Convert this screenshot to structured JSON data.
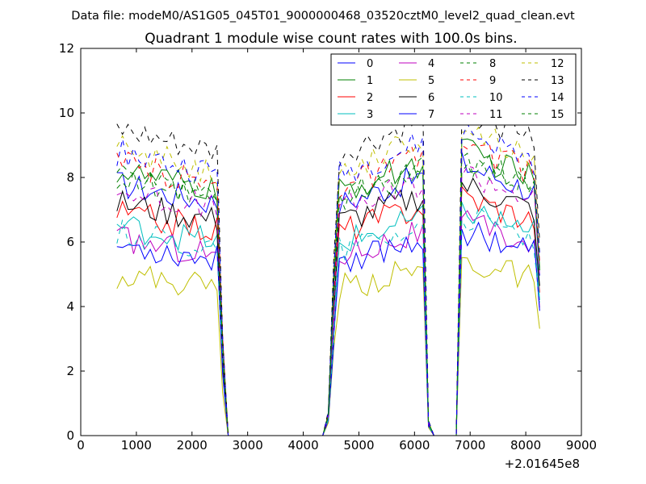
{
  "figure": {
    "suptitle": "Data file: modeM0/AS1G05_045T01_9000000468_03520cztM0_level2_quad_clean.evt",
    "title": "Quadrant 1 module wise count rates with 100.0s bins.",
    "x_offset_label": "+2.01645e8"
  },
  "chart_data": {
    "type": "line",
    "title": "Quadrant 1 module wise count rates with 100.0s bins.",
    "xlabel": "",
    "ylabel": "",
    "xlim": [
      0,
      9000
    ],
    "ylim": [
      0,
      12
    ],
    "x_ticks": [
      0,
      1000,
      2000,
      3000,
      4000,
      5000,
      6000,
      7000,
      8000,
      9000
    ],
    "y_ticks": [
      0,
      2,
      4,
      6,
      8,
      10,
      12
    ],
    "x_offset": "+2.01645e8",
    "legend_position": "top-right",
    "segments": [
      {
        "start": 650,
        "step": 100,
        "count": 18
      },
      {
        "start": 2450,
        "step": 100,
        "count": 22
      },
      {
        "start": 4450,
        "step": 100,
        "count": 19
      },
      {
        "start": 6250,
        "step": 100,
        "count": 6
      },
      {
        "start": 6850,
        "step": 100,
        "count": 15
      }
    ],
    "series": [
      {
        "name": "0",
        "color": "#0000ff",
        "dash": "solid",
        "base": 7.8
      },
      {
        "name": "1",
        "color": "#008000",
        "dash": "solid",
        "base": 8.2
      },
      {
        "name": "2",
        "color": "#ff0000",
        "dash": "solid",
        "base": 6.9
      },
      {
        "name": "3",
        "color": "#00bfbf",
        "dash": "solid",
        "base": 6.5
      },
      {
        "name": "4",
        "color": "#bf00bf",
        "dash": "solid",
        "base": 6.1
      },
      {
        "name": "5",
        "color": "#bfbf00",
        "dash": "solid",
        "base": 5.0
      },
      {
        "name": "6",
        "color": "#000000",
        "dash": "solid",
        "base": 7.2
      },
      {
        "name": "7",
        "color": "#0000ff",
        "dash": "solid",
        "base": 5.9
      },
      {
        "name": "8",
        "color": "#008000",
        "dash": "dashed",
        "base": 8.0
      },
      {
        "name": "9",
        "color": "#ff0000",
        "dash": "dashed",
        "base": 8.4
      },
      {
        "name": "10",
        "color": "#00bfbf",
        "dash": "dashed",
        "base": 6.3
      },
      {
        "name": "11",
        "color": "#bf00bf",
        "dash": "dashed",
        "base": 7.6
      },
      {
        "name": "12",
        "color": "#bfbf00",
        "dash": "dashed",
        "base": 8.9
      },
      {
        "name": "13",
        "color": "#000000",
        "dash": "dashed",
        "base": 9.4
      },
      {
        "name": "14",
        "color": "#0000ff",
        "dash": "dashed",
        "base": 8.8
      },
      {
        "name": "15",
        "color": "#008000",
        "dash": "dashed",
        "base": 7.9
      }
    ]
  }
}
